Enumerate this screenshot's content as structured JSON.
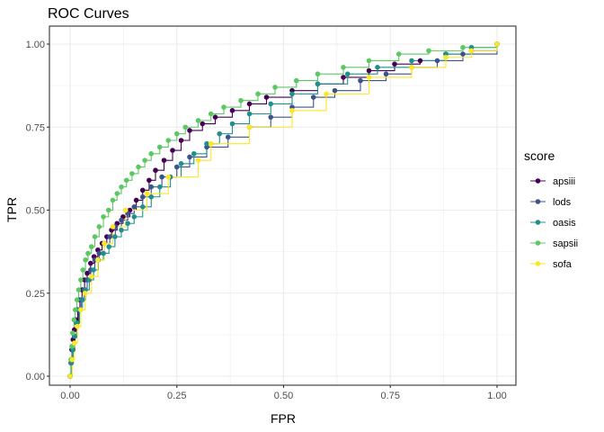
{
  "chart_data": {
    "type": "line",
    "title": "ROC Curves",
    "xlabel": "FPR",
    "ylabel": "TPR",
    "xlim": [
      0,
      1
    ],
    "ylim": [
      0,
      1
    ],
    "x_ticks": [
      "0.00",
      "0.25",
      "0.50",
      "0.75",
      "1.00"
    ],
    "y_ticks": [
      "0.00",
      "0.25",
      "0.50",
      "0.75",
      "1.00"
    ],
    "grid": true,
    "legend": {
      "title": "score",
      "position": "right"
    },
    "series": [
      {
        "name": "apsiii",
        "color": "#440154",
        "points": [
          [
            0,
            0
          ],
          [
            0.002,
            0.04
          ],
          [
            0.004,
            0.08
          ],
          [
            0.007,
            0.11
          ],
          [
            0.01,
            0.14
          ],
          [
            0.014,
            0.17
          ],
          [
            0.018,
            0.2
          ],
          [
            0.023,
            0.23
          ],
          [
            0.028,
            0.26
          ],
          [
            0.034,
            0.29
          ],
          [
            0.04,
            0.31
          ],
          [
            0.048,
            0.34
          ],
          [
            0.056,
            0.36
          ],
          [
            0.065,
            0.38
          ],
          [
            0.075,
            0.4
          ],
          [
            0.086,
            0.42
          ],
          [
            0.097,
            0.44
          ],
          [
            0.11,
            0.46
          ],
          [
            0.124,
            0.48
          ],
          [
            0.14,
            0.5
          ],
          [
            0.155,
            0.53
          ],
          [
            0.17,
            0.56
          ],
          [
            0.185,
            0.59
          ],
          [
            0.2,
            0.62
          ],
          [
            0.22,
            0.65
          ],
          [
            0.24,
            0.68
          ],
          [
            0.26,
            0.71
          ],
          [
            0.28,
            0.74
          ],
          [
            0.31,
            0.76
          ],
          [
            0.34,
            0.78
          ],
          [
            0.38,
            0.8
          ],
          [
            0.42,
            0.82
          ],
          [
            0.46,
            0.84
          ],
          [
            0.52,
            0.86
          ],
          [
            0.58,
            0.88
          ],
          [
            0.64,
            0.9
          ],
          [
            0.7,
            0.92
          ],
          [
            0.76,
            0.94
          ],
          [
            0.82,
            0.95
          ],
          [
            0.88,
            0.97
          ],
          [
            0.94,
            0.98
          ],
          [
            1,
            1
          ]
        ]
      },
      {
        "name": "lods",
        "color": "#3b528b",
        "points": [
          [
            0,
            0
          ],
          [
            0.003,
            0.04
          ],
          [
            0.006,
            0.08
          ],
          [
            0.01,
            0.12
          ],
          [
            0.015,
            0.16
          ],
          [
            0.02,
            0.2
          ],
          [
            0.026,
            0.23
          ],
          [
            0.033,
            0.26
          ],
          [
            0.04,
            0.29
          ],
          [
            0.048,
            0.32
          ],
          [
            0.058,
            0.35
          ],
          [
            0.068,
            0.37
          ],
          [
            0.08,
            0.4
          ],
          [
            0.093,
            0.42
          ],
          [
            0.106,
            0.45
          ],
          [
            0.12,
            0.47
          ],
          [
            0.135,
            0.49
          ],
          [
            0.15,
            0.51
          ],
          [
            0.17,
            0.54
          ],
          [
            0.19,
            0.57
          ],
          [
            0.215,
            0.6
          ],
          [
            0.25,
            0.63
          ],
          [
            0.28,
            0.66
          ],
          [
            0.32,
            0.69
          ],
          [
            0.37,
            0.72
          ],
          [
            0.42,
            0.75
          ],
          [
            0.47,
            0.78
          ],
          [
            0.52,
            0.81
          ],
          [
            0.57,
            0.84
          ],
          [
            0.62,
            0.86
          ],
          [
            0.68,
            0.89
          ],
          [
            0.74,
            0.91
          ],
          [
            0.8,
            0.93
          ],
          [
            0.86,
            0.95
          ],
          [
            0.92,
            0.97
          ],
          [
            1,
            1
          ]
        ]
      },
      {
        "name": "oasis",
        "color": "#21908d",
        "points": [
          [
            0,
            0
          ],
          [
            0.003,
            0.04
          ],
          [
            0.007,
            0.08
          ],
          [
            0.011,
            0.12
          ],
          [
            0.016,
            0.16
          ],
          [
            0.022,
            0.2
          ],
          [
            0.029,
            0.23
          ],
          [
            0.036,
            0.26
          ],
          [
            0.045,
            0.29
          ],
          [
            0.055,
            0.32
          ],
          [
            0.066,
            0.35
          ],
          [
            0.078,
            0.37
          ],
          [
            0.091,
            0.39
          ],
          [
            0.105,
            0.42
          ],
          [
            0.12,
            0.44
          ],
          [
            0.135,
            0.46
          ],
          [
            0.15,
            0.48
          ],
          [
            0.17,
            0.51
          ],
          [
            0.19,
            0.54
          ],
          [
            0.21,
            0.57
          ],
          [
            0.235,
            0.6
          ],
          [
            0.26,
            0.64
          ],
          [
            0.29,
            0.67
          ],
          [
            0.32,
            0.7
          ],
          [
            0.35,
            0.73
          ],
          [
            0.38,
            0.76
          ],
          [
            0.42,
            0.79
          ],
          [
            0.47,
            0.82
          ],
          [
            0.52,
            0.85
          ],
          [
            0.58,
            0.88
          ],
          [
            0.65,
            0.91
          ],
          [
            0.72,
            0.93
          ],
          [
            0.8,
            0.95
          ],
          [
            0.88,
            0.97
          ],
          [
            0.94,
            0.99
          ],
          [
            1,
            1
          ]
        ]
      },
      {
        "name": "sapsii",
        "color": "#5dc863",
        "points": [
          [
            0,
            0
          ],
          [
            0.002,
            0.05
          ],
          [
            0.004,
            0.09
          ],
          [
            0.006,
            0.13
          ],
          [
            0.009,
            0.17
          ],
          [
            0.012,
            0.2
          ],
          [
            0.016,
            0.23
          ],
          [
            0.02,
            0.26
          ],
          [
            0.025,
            0.29
          ],
          [
            0.03,
            0.32
          ],
          [
            0.036,
            0.35
          ],
          [
            0.042,
            0.37
          ],
          [
            0.05,
            0.39
          ],
          [
            0.058,
            0.42
          ],
          [
            0.068,
            0.45
          ],
          [
            0.078,
            0.48
          ],
          [
            0.09,
            0.5
          ],
          [
            0.1,
            0.53
          ],
          [
            0.11,
            0.55
          ],
          [
            0.12,
            0.57
          ],
          [
            0.132,
            0.59
          ],
          [
            0.145,
            0.61
          ],
          [
            0.16,
            0.63
          ],
          [
            0.175,
            0.65
          ],
          [
            0.19,
            0.67
          ],
          [
            0.21,
            0.69
          ],
          [
            0.23,
            0.71
          ],
          [
            0.25,
            0.73
          ],
          [
            0.27,
            0.75
          ],
          [
            0.3,
            0.77
          ],
          [
            0.33,
            0.79
          ],
          [
            0.36,
            0.81
          ],
          [
            0.4,
            0.83
          ],
          [
            0.44,
            0.85
          ],
          [
            0.48,
            0.87
          ],
          [
            0.53,
            0.89
          ],
          [
            0.58,
            0.91
          ],
          [
            0.64,
            0.93
          ],
          [
            0.7,
            0.95
          ],
          [
            0.77,
            0.97
          ],
          [
            0.84,
            0.98
          ],
          [
            0.92,
            0.99
          ],
          [
            1,
            1
          ]
        ]
      },
      {
        "name": "sofa",
        "color": "#fde725",
        "points": [
          [
            0,
            0
          ],
          [
            0.005,
            0.05
          ],
          [
            0.01,
            0.1
          ],
          [
            0.017,
            0.15
          ],
          [
            0.025,
            0.2
          ],
          [
            0.035,
            0.25
          ],
          [
            0.05,
            0.3
          ],
          [
            0.065,
            0.35
          ],
          [
            0.08,
            0.4
          ],
          [
            0.1,
            0.45
          ],
          [
            0.13,
            0.5
          ],
          [
            0.18,
            0.55
          ],
          [
            0.23,
            0.6
          ],
          [
            0.3,
            0.65
          ],
          [
            0.33,
            0.7
          ],
          [
            0.42,
            0.75
          ],
          [
            0.52,
            0.8
          ],
          [
            0.6,
            0.85
          ],
          [
            0.7,
            0.9
          ],
          [
            0.8,
            0.93
          ],
          [
            0.88,
            0.96
          ],
          [
            0.94,
            0.98
          ],
          [
            1,
            1
          ]
        ]
      }
    ]
  }
}
